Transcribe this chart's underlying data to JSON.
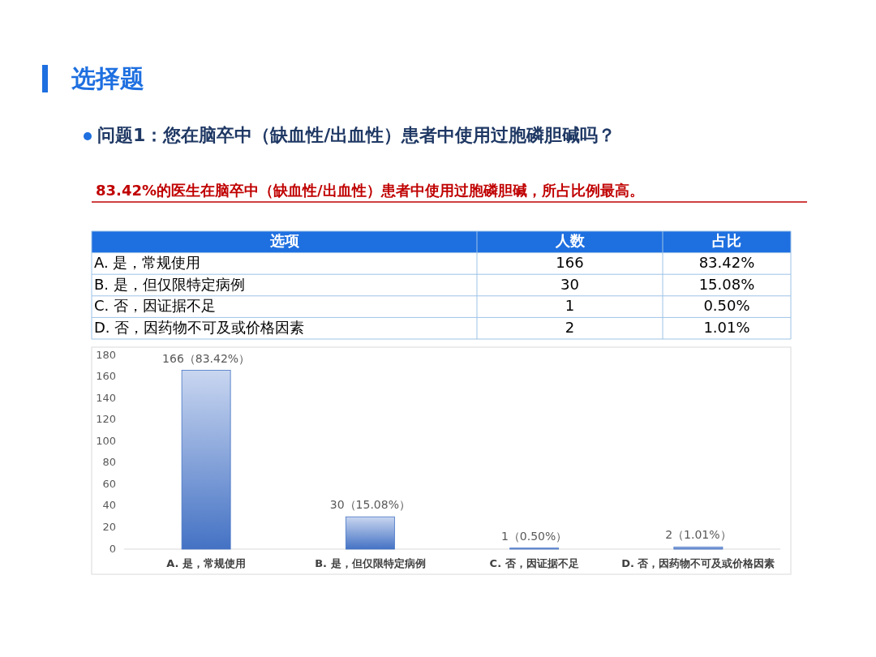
{
  "chart_data": [
    {
      "type": "other",
      "title": "选择题",
      "subtitle": "问题1：您在脑卒中（缺血性/出血性）患者中使用过胞磷胆碱吗？",
      "annotations": [
        "83.42%的医生在脑卒中（缺血性/出血性）患者中使用过胞磷胆碱，所占比例最高。"
      ],
      "xlabel": "选项",
      "categories": [
        "A. 是，常规使用",
        "B. 是，但仅限特定病例",
        "C. 否，因证据不足",
        "D. 否，因药物不可及或价格因素"
      ],
      "series": [
        {
          "name": "人数",
          "values": [
            166,
            30,
            1,
            2
          ],
          "value_labels": [
            "166",
            "30",
            "1",
            "2"
          ]
        },
        {
          "name": "占比",
          "values": [
            83.42,
            15.08,
            0.5,
            1.01
          ],
          "value_labels": [
            "83.42%",
            "15.08%",
            "0.50%",
            "1.01%"
          ]
        }
      ]
    },
    {
      "type": "bar",
      "categories": [
        "A. 是，常规使用",
        "B. 是，但仅限特定病例",
        "C. 否，因证据不足",
        "D. 否，因药物不可及或价格因素"
      ],
      "values": [
        166,
        30,
        1,
        2
      ],
      "value_labels": [
        "166（83.42%）",
        "30（15.08%）",
        "1（0.50%）",
        "2（1.01%）"
      ],
      "color": "#4472c4",
      "ylim": [
        0,
        180
      ],
      "yticks": [
        0,
        20,
        40,
        60,
        80,
        100,
        120,
        140,
        160,
        180
      ],
      "grid": false,
      "legend": false
    }
  ]
}
